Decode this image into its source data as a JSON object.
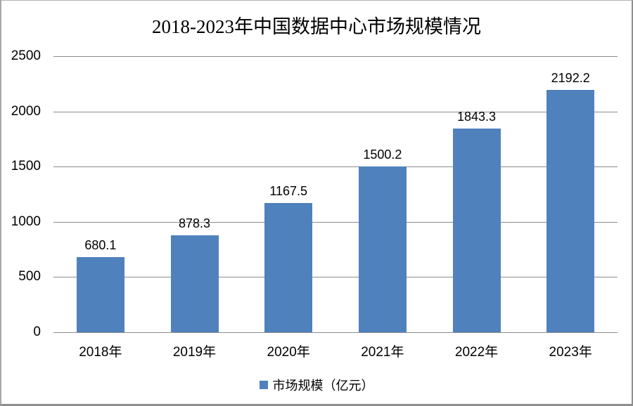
{
  "chart_data": {
    "type": "bar",
    "title": "2018-2023年中国数据中心市场规模情况",
    "categories": [
      "2018年",
      "2019年",
      "2020年",
      "2021年",
      "2022年",
      "2023年"
    ],
    "series": [
      {
        "name": "市场规模（亿元）",
        "values": [
          680.1,
          878.3,
          1167.5,
          1500.2,
          1843.3,
          2192.2
        ],
        "value_labels": [
          "680.1",
          "878.3",
          "1167.5",
          "1500.2",
          "1843.3",
          "2192.2"
        ]
      }
    ],
    "xlabel": "",
    "ylabel": "",
    "ylim": [
      0,
      2500
    ],
    "ytick_interval": 500,
    "ytick_labels": [
      "0",
      "500",
      "1000",
      "1500",
      "2000",
      "2500"
    ],
    "grid": true,
    "data_labels_shown": true,
    "legend_position": "bottom",
    "colors": {
      "bar": "#4F81BD",
      "gridline": "#8C8C8C",
      "axis_line": "#8C8C8C",
      "text": "#000000"
    }
  },
  "legend": {
    "label": "市场规模（亿元）"
  }
}
